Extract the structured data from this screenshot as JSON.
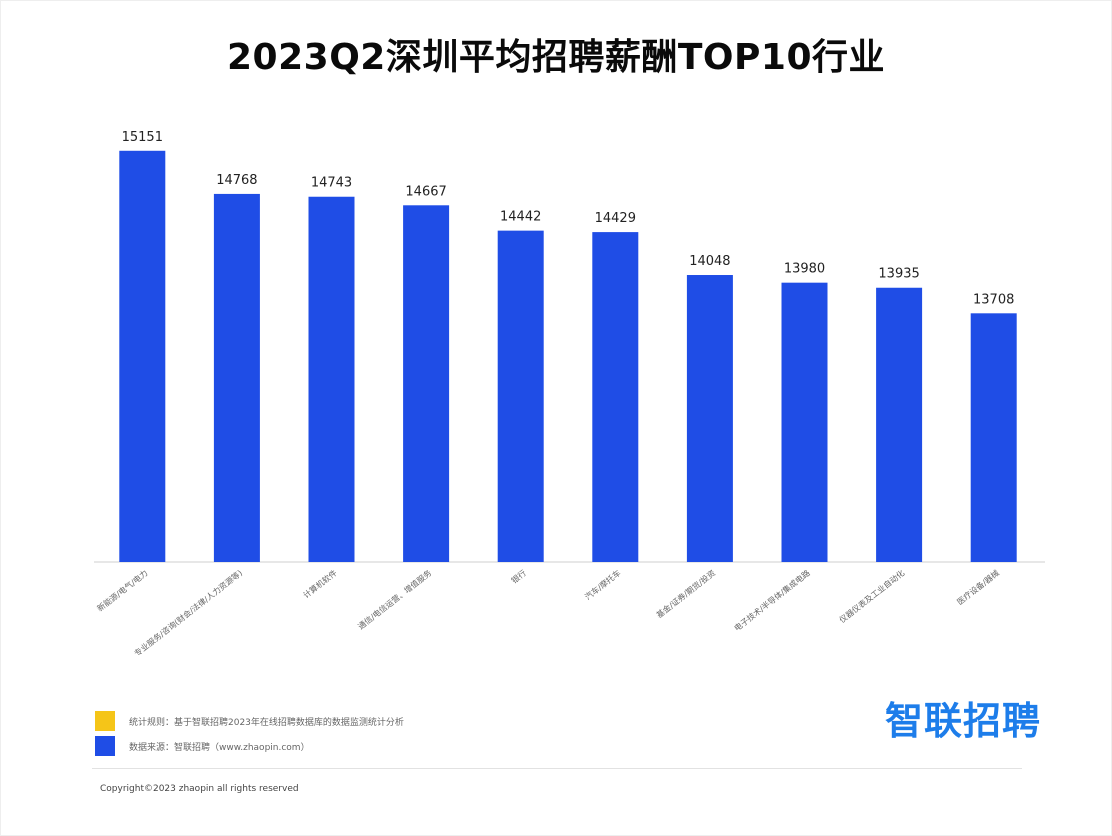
{
  "chart_data": {
    "type": "bar",
    "title": "2023Q2深圳平均招聘薪酬TOP10行业",
    "categories": [
      "新能源/电气/电力",
      "专业服务/咨询(财会/法律/人力资源等)",
      "计算机软件",
      "通信/电信运营、增值服务",
      "银行",
      "汽车/摩托车",
      "基金/证券/期货/投资",
      "电子技术/半导体/集成电路",
      "仪器仪表及工业自动化",
      "医疗设备/器械"
    ],
    "values": [
      15151,
      14768,
      14743,
      14667,
      14442,
      14429,
      14048,
      13980,
      13935,
      13708
    ],
    "bar_color": "#1f4de6",
    "ylim": [
      11500,
      15300
    ],
    "grid": false,
    "xlabel": "",
    "ylabel": ""
  },
  "legend": {
    "items": [
      {
        "color": "#f5c518",
        "text": "统计规则：基于智联招聘2023年在线招聘数据库的数据监测统计分析"
      },
      {
        "color": "#1f4de6",
        "text": "数据来源：智联招聘（www.zhaopin.com）"
      }
    ]
  },
  "brand": {
    "logo_text": "智联招聘",
    "color": "#1d7dea"
  },
  "footer": {
    "copyright": "Copyright©2023 zhaopin all rights reserved"
  }
}
